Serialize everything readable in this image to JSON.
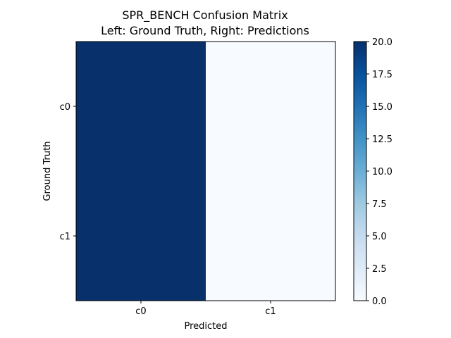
{
  "chart_data": {
    "type": "heatmap",
    "title": "SPR_BENCH Confusion Matrix",
    "subtitle": "Left: Ground Truth, Right: Predictions",
    "xlabel": "Predicted",
    "ylabel": "Ground Truth",
    "x_categories": [
      "c0",
      "c1"
    ],
    "y_categories": [
      "c0",
      "c1"
    ],
    "values": [
      [
        20,
        0
      ],
      [
        20,
        0
      ]
    ],
    "colormap": "Blues",
    "color_range": [
      0,
      20
    ],
    "colorbar_ticks": [
      "0.0",
      "2.5",
      "5.0",
      "7.5",
      "10.0",
      "12.5",
      "15.0",
      "17.5",
      "20.0"
    ],
    "colors": {
      "low": "#f7fbff",
      "high": "#08306b"
    }
  }
}
